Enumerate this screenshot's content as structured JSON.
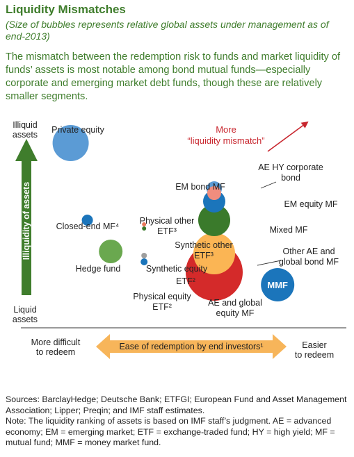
{
  "figure": {
    "title": "Liquidity Mismatches",
    "subtitle": "(Size of bubbles represents relative global assets under management as of end-2013)",
    "lede": "The mismatch between the redemption risk to funds and market liquidity of funds’ assets is most notable among bond mutual funds—especially corporate and emerging market debt funds, though these are relatively smaller segments."
  },
  "colors": {
    "title_green": "#3f7d2c",
    "axis_green": "#3f7d2c",
    "axis_orange": "#f7b55a",
    "mismatch_red": "#c8262e",
    "light_blue": "#5b9bd5",
    "blue": "#1b75bb",
    "dark_green": "#3a7a2b",
    "mid_green": "#6aa84f",
    "salmon": "#f08d7e",
    "orange": "#fbb554",
    "red": "#d42a2a",
    "gray": "#9e9e9e"
  },
  "chart_data": {
    "type": "scatter",
    "encoding": "bubble",
    "xaxis": {
      "label": "Ease of redemption by end investors¹",
      "low": [
        "More difficult",
        "to redeem"
      ],
      "high": [
        "Easier",
        "to redeem"
      ]
    },
    "yaxis": {
      "label": "Illiquidity of assets",
      "low": [
        "Liquid",
        "assets"
      ],
      "high": [
        "Illiquid",
        "assets"
      ]
    },
    "annotation": [
      "More",
      "“liquidity mismatch”"
    ],
    "points": [
      {
        "label": [
          "Private equity"
        ],
        "ease": 1.7,
        "illiquidity": 8.8,
        "size": 26,
        "color": "#5b9bd5"
      },
      {
        "label": [
          "Closed-end MF⁴"
        ],
        "ease": 2.2,
        "illiquidity": 5.1,
        "size": 8,
        "color": "#1b75bb"
      },
      {
        "label": [
          "Hedge fund"
        ],
        "ease": 2.9,
        "illiquidity": 3.6,
        "size": 17,
        "color": "#6aa84f"
      },
      {
        "label": [
          "Physical other",
          "ETF³"
        ],
        "ease": 3.9,
        "illiquidity": 4.9,
        "size": 3,
        "color": "#e8785a"
      },
      {
        "label": [
          "Synthetic other",
          "ETF³"
        ],
        "ease": 3.9,
        "illiquidity": 4.7,
        "size": 3,
        "color": "#3a7a2b"
      },
      {
        "label": [
          "Synthetic equity"
        ],
        "ease": 3.9,
        "illiquidity": 3.4,
        "size": 4,
        "color": "#9e9e9e"
      },
      {
        "label": [
          "ETF²"
        ],
        "ease": 3.9,
        "illiquidity": 3.1,
        "size": 5,
        "color": "#1b75bb"
      },
      {
        "label": [
          "Physical equity",
          "ETF²"
        ],
        "ease": 3.9,
        "illiquidity": 2.2,
        "size": 0,
        "color": ""
      },
      {
        "label": [
          "EM bond MF"
        ],
        "ease": 6.0,
        "illiquidity": 6.6,
        "size": 11,
        "color": "#5b9bd5"
      },
      {
        "label": [
          "AE HY corporate",
          "bond"
        ],
        "ease": 6.0,
        "illiquidity": 6.4,
        "size": 10,
        "color": "#f08d7e"
      },
      {
        "label": [
          "EM equity MF"
        ],
        "ease": 6.0,
        "illiquidity": 6.0,
        "size": 16,
        "color": "#1b75bb"
      },
      {
        "label": [
          "Mixed MF"
        ],
        "ease": 6.0,
        "illiquidity": 5.1,
        "size": 23,
        "color": "#3a7a2b"
      },
      {
        "label": [
          "AE and global",
          "equity MF"
        ],
        "ease": 6.0,
        "illiquidity": 2.6,
        "size": 41,
        "color": "#d42a2a"
      },
      {
        "label": [
          "Other AE and",
          "global bond MF"
        ],
        "ease": 6.0,
        "illiquidity": 3.5,
        "size": 30,
        "color": "#fbb554"
      },
      {
        "label": [
          "MMF"
        ],
        "ease": 7.9,
        "illiquidity": 2.0,
        "size": 24,
        "color": "#1b75bb",
        "inside": true
      }
    ]
  },
  "footnotes": [
    "Sources: BarclayHedge; Deutsche Bank; ETFGI; European Fund and Asset Management Association; Lipper; Preqin; and IMF staff estimates.",
    "Note: The liquidity ranking of assets is based on IMF staff’s judgment. AE = advanced economy; EM = emerging market; ETF = exchange-traded fund; HY = high yield; MF = mutual fund; MMF = money market fund."
  ]
}
